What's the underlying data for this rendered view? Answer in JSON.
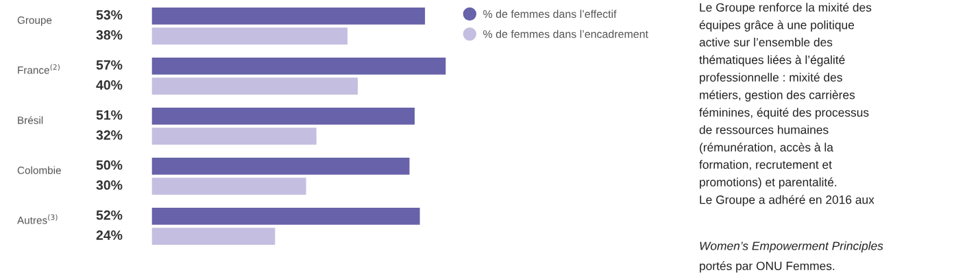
{
  "chart_data": {
    "type": "bar",
    "orientation": "horizontal",
    "categories": [
      "Groupe",
      "France$^{(2)}$",
      "Brésil",
      "Colombie",
      "Autres$^{(3)}$"
    ],
    "series": [
      {
        "name": "% de femmes dans l’effectif",
        "color": "#6762a9",
        "values": [
          53,
          57,
          51,
          50,
          52
        ],
        "value_labels": [
          "53%",
          "57%",
          "51%",
          "50%",
          "52%"
        ]
      },
      {
        "name": "% de femmes dans l’encadrement",
        "color": "#c4bfe1",
        "values": [
          38,
          40,
          32,
          30,
          24
        ],
        "value_labels": [
          "38%",
          "40%",
          "32%",
          "30%",
          "24%"
        ]
      }
    ],
    "legend": "right",
    "annotations": [
      "Le Groupe renforce la mixité des\néquipes grâce à une politique\nactive sur l’ensemble des\nthématiques liées à l’égalité\nprofessionnelle : mixité des\nmétiers, gestion des carrières\nféminines, équité des processus\nde ressources humaines\n(rémunération, accès à la\nformation, recrutement et\npromotions) et parentalité.\nLe Groupe a adhéré en 2016 aux",
      "Women’s Empowerment Principles",
      "portés par ONU Femmes."
    ]
  }
}
